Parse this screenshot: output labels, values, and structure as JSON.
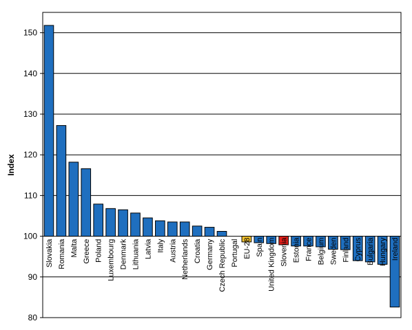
{
  "chart_data": {
    "type": "bar",
    "title": "",
    "xlabel": "",
    "ylabel": "Index",
    "ylim": [
      80,
      155
    ],
    "yticks": [
      80,
      90,
      100,
      110,
      120,
      130,
      140,
      150
    ],
    "baseline": 100,
    "grid": true,
    "categories": [
      "Slovakia",
      "Romania",
      "Malta",
      "Greece",
      "Poland",
      "Luxembourg",
      "Denmark",
      "Lithuania",
      "Latvia",
      "Italy",
      "Austria",
      "Netherlands",
      "Croatia",
      "Germany",
      "Czech Republic",
      "Portugal",
      "EU-28",
      "Spain",
      "United Kingdom",
      "Slovenia",
      "Estonia",
      "France",
      "Belgium",
      "Sweden",
      "Finland",
      "Cyprus",
      "Bulgaria",
      "Hungary",
      "Ireland"
    ],
    "values": [
      151.8,
      127.2,
      118.2,
      116.6,
      107.9,
      106.8,
      106.5,
      105.7,
      104.5,
      103.8,
      103.5,
      103.5,
      102.5,
      102.2,
      101.2,
      100.0,
      98.6,
      98.4,
      98.2,
      97.9,
      97.6,
      97.6,
      97.4,
      96.8,
      96.7,
      94.0,
      93.7,
      93.1,
      82.6
    ],
    "colors": {
      "default": "#1f6fbf",
      "eu": "#f2c12e",
      "slovenia": "#e0201b",
      "stroke": "#000000",
      "grid": "#000000"
    },
    "highlight": {
      "EU-28": "eu",
      "Slovenia": "slovenia"
    }
  }
}
